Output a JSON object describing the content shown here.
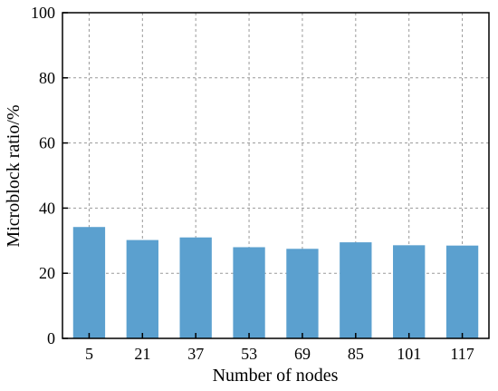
{
  "chart_data": {
    "type": "bar",
    "title": "",
    "xlabel": "Number of nodes",
    "ylabel": "Microblock ratio/%",
    "categories": [
      "5",
      "21",
      "37",
      "53",
      "69",
      "85",
      "101",
      "117"
    ],
    "values": [
      34.2,
      30.2,
      31.0,
      28.0,
      27.5,
      29.5,
      28.6,
      28.5
    ],
    "ylim": [
      0,
      100
    ],
    "yticks": [
      "0",
      "20",
      "40",
      "60",
      "80",
      "100"
    ],
    "grid": true,
    "bar_color": "#5ba0cf"
  }
}
